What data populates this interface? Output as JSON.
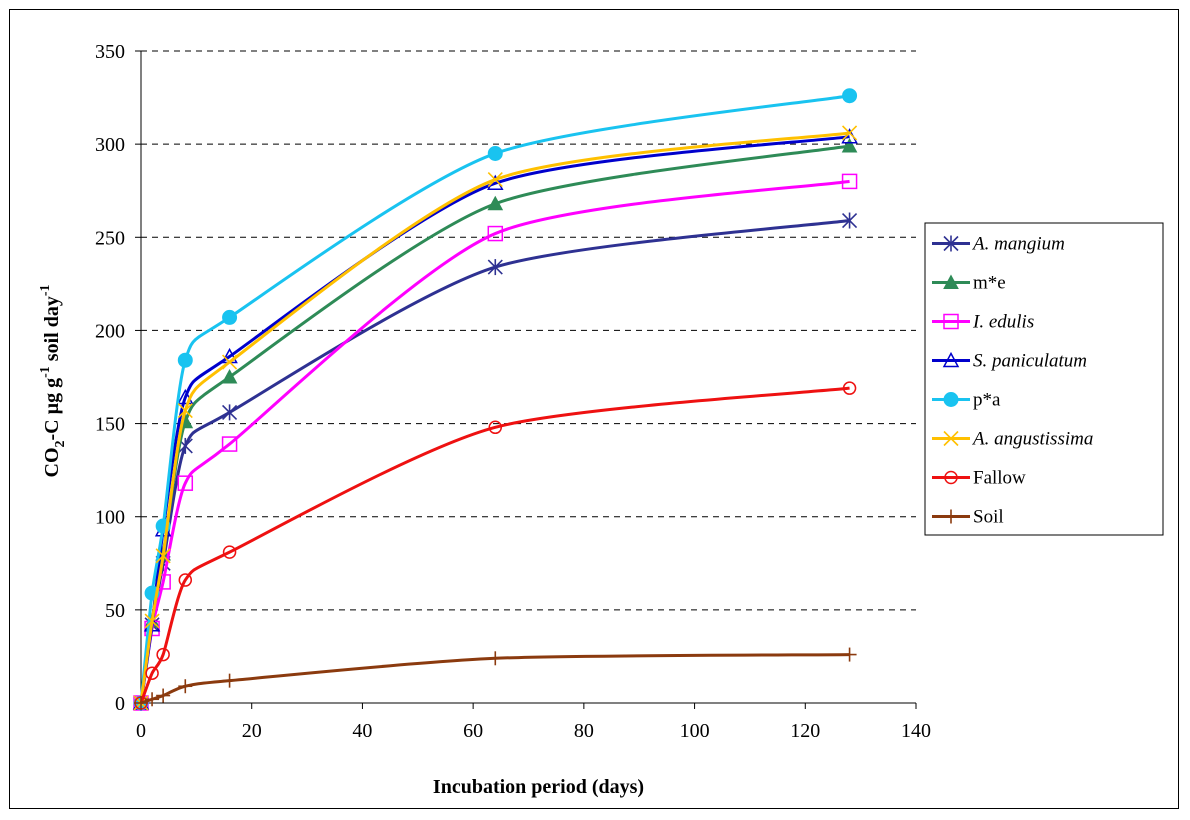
{
  "chart_data": {
    "type": "line",
    "xlabel": "Incubation period (days)",
    "ylabel": {
      "parts": [
        "CO",
        "2",
        "-C µg g",
        "-1",
        " soil day",
        "-1"
      ]
    },
    "xlim": [
      0,
      140
    ],
    "ylim": [
      0,
      350
    ],
    "x_ticks": [
      0,
      20,
      40,
      60,
      80,
      100,
      120,
      140
    ],
    "y_ticks": [
      0,
      50,
      100,
      150,
      200,
      250,
      300,
      350
    ],
    "grid": "horizontal dashed",
    "legend_position": "right",
    "x": [
      0,
      2,
      4,
      8,
      16,
      64,
      128
    ],
    "series": [
      {
        "name": "A. mangium",
        "italic": true,
        "color": "#2E3192",
        "marker": "asterisk",
        "values": [
          0,
          42,
          75,
          138,
          156,
          234,
          259
        ]
      },
      {
        "name": "m*e",
        "italic": false,
        "color": "#2E8B57",
        "marker": "triangle-filled",
        "values": [
          0,
          44,
          80,
          151,
          175,
          268,
          299
        ]
      },
      {
        "name": "I. edulis",
        "italic": true,
        "color": "#FF00FF",
        "marker": "square-open",
        "values": [
          0,
          40,
          65,
          118,
          139,
          252,
          280
        ]
      },
      {
        "name": "S. paniculatum",
        "italic": true,
        "color": "#0000CC",
        "marker": "triangle-open",
        "values": [
          0,
          42,
          93,
          164,
          186,
          279,
          304
        ]
      },
      {
        "name": "p*a",
        "italic": false,
        "color": "#19C3F0",
        "marker": "circle-filled",
        "values": [
          0,
          59,
          95,
          184,
          207,
          295,
          326
        ]
      },
      {
        "name": "A. angustissima",
        "italic": true,
        "color": "#FFC000",
        "marker": "x",
        "values": [
          0,
          44,
          79,
          157,
          183,
          281,
          306
        ]
      },
      {
        "name": "Fallow",
        "italic": false,
        "color": "#EE1111",
        "marker": "circle-open",
        "values": [
          0,
          16,
          26,
          66,
          81,
          148,
          169
        ]
      },
      {
        "name": "Soil",
        "italic": false,
        "color": "#8B3A0E",
        "marker": "plus",
        "values": [
          0,
          2,
          4,
          9,
          12,
          24,
          26
        ]
      }
    ]
  }
}
